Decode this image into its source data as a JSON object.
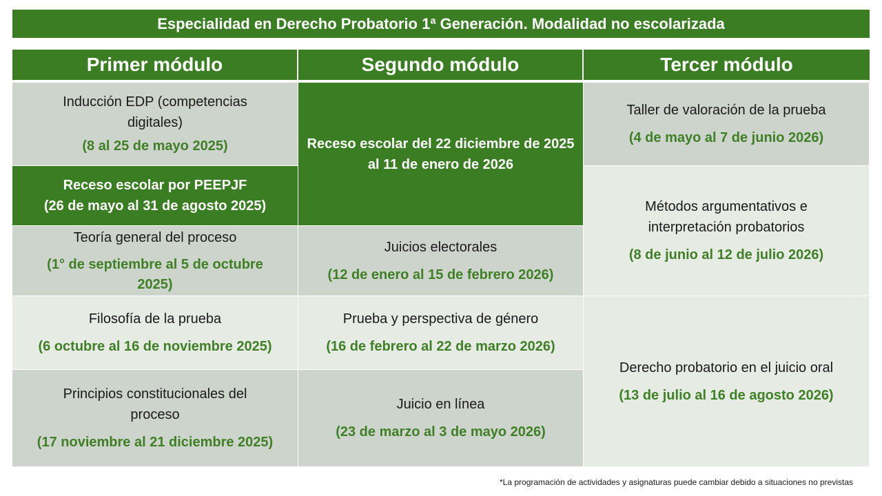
{
  "title": "Especialidad en Derecho Probatorio 1ª Generación. Modalidad no escolarizada",
  "columns": [
    "Primer módulo",
    "Segundo módulo",
    "Tercer módulo"
  ],
  "modules": {
    "col1": [
      {
        "name": "Inducción EDP (competencias digitales)",
        "date": "(8 al 25 de mayo 2025)"
      },
      {
        "name": "Receso escolar por PEEPJF",
        "date": "(26 de mayo al 31 de agosto 2025)"
      },
      {
        "name": "Teoría general del proceso",
        "date": "(1° de septiembre al 5 de octubre 2025)"
      },
      {
        "name": "Filosofía de la prueba",
        "date": "(6 octubre al 16 de noviembre 2025)"
      },
      {
        "name": "Principios constitucionales del proceso",
        "date": "(17 noviembre al 21 diciembre 2025)"
      }
    ],
    "col2": [
      {
        "name": "Receso escolar del 22 diciembre de 2025 al 11 de enero de 2026"
      },
      {
        "name": "Juicios electorales",
        "date": "(12 de enero al 15 de febrero 2026)"
      },
      {
        "name": "Prueba y perspectiva de género",
        "date": "(16 de febrero al 22 de marzo 2026)"
      },
      {
        "name": "Juicio en línea",
        "date": "(23 de marzo al 3 de mayo 2026)"
      }
    ],
    "col3": [
      {
        "name": "Taller de valoración de la prueba",
        "date": "(4 de mayo al 7 de junio 2026)"
      },
      {
        "name": "Métodos argumentativos e interpretación probatorios",
        "date": "(8 de junio al 12 de julio 2026)"
      },
      {
        "name": "Derecho probatorio en el juicio oral",
        "date": "(13 de julio al 16 de agosto 2026)"
      }
    ]
  },
  "footnote": "*La programación de actividades y asignaturas puede cambiar debido a situaciones no previstas",
  "colors": {
    "accent_green": "#3a7d22",
    "date_green": "#3f7f26",
    "cell_dark": "#cdd4cb",
    "cell_light": "#e6ebe4"
  }
}
